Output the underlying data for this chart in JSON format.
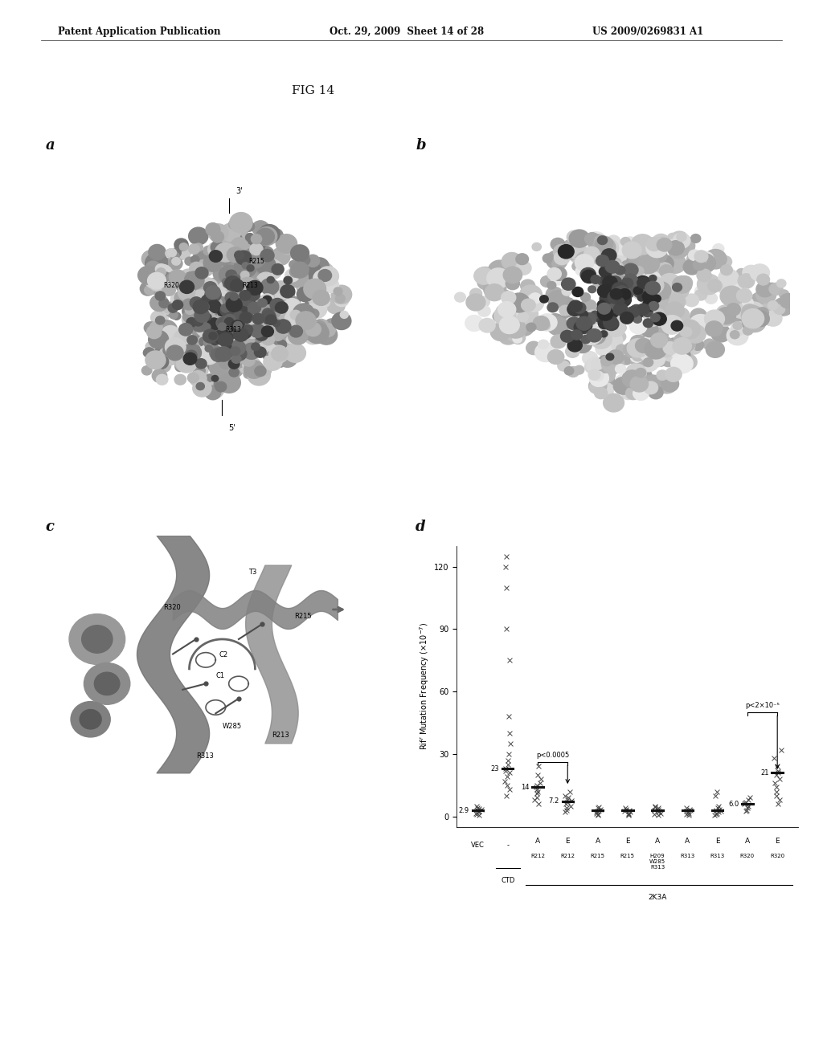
{
  "page_header_left": "Patent Application Publication",
  "page_header_mid": "Oct. 29, 2009  Sheet 14 of 28",
  "page_header_right": "US 2009/0269831 A1",
  "fig_title": "FIG 14",
  "background_color": "#ffffff",
  "panel_a_label": "a",
  "panel_b_label": "b",
  "panel_c_label": "c",
  "panel_d_label": "d",
  "plot_d": {
    "ylabel": "Rifʳ Mutation Frequency (× 10⁻⁷)",
    "yticks": [
      0,
      30,
      60,
      90,
      120
    ],
    "ylim": [
      -5,
      130
    ],
    "medians": [
      2.9,
      23.0,
      14.0,
      7.2,
      3.0,
      2.8,
      3.0,
      2.8,
      3.0,
      6.0,
      21.0
    ],
    "mean_labels": [
      "2.9",
      "23",
      "14",
      "7.2",
      "",
      "",
      "",
      "",
      "",
      "6.0",
      "21"
    ],
    "p1_text": "p<0.0005",
    "p2_text": "p<2×10⁻⁵",
    "ctd_label": "CTD",
    "twok3a_label": "2K3A",
    "ae_labels": [
      "",
      "",
      "A",
      "E",
      "A",
      "E",
      "A",
      "A",
      "E",
      "A",
      "E"
    ],
    "res_labels": [
      "VEC",
      "-",
      "R212",
      "R212",
      "R215",
      "R215",
      "H209\nW285\nR313",
      "R313",
      "R313",
      "R320",
      "R320"
    ]
  }
}
